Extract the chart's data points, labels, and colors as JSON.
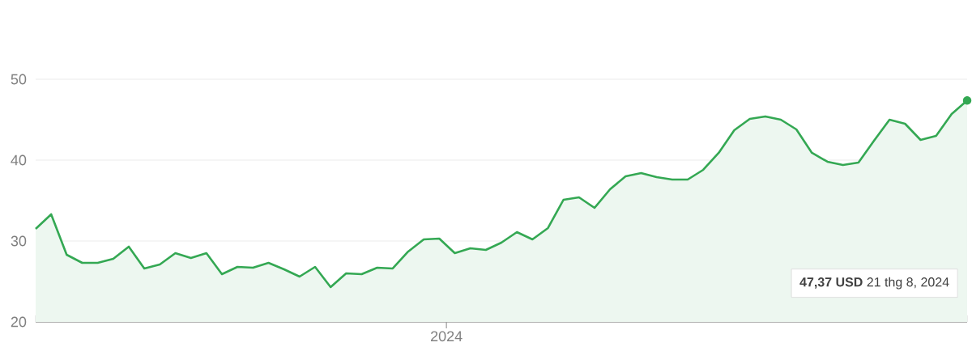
{
  "chart_data": {
    "type": "area",
    "categories": [
      null,
      null,
      null,
      null,
      null,
      null,
      null,
      null,
      null,
      null,
      null,
      null,
      null,
      null,
      null,
      null,
      null,
      null,
      null,
      null,
      null,
      null,
      null,
      null,
      null,
      null,
      null,
      null,
      null,
      null,
      null,
      null,
      null,
      null,
      null,
      null,
      null,
      null,
      null,
      null,
      null,
      null,
      null,
      null,
      null,
      null,
      null,
      null,
      null,
      null,
      null,
      null,
      null,
      null,
      null,
      null,
      null,
      null,
      null,
      null,
      null
    ],
    "values": [
      31.5,
      33.3,
      28.3,
      27.3,
      27.3,
      27.8,
      29.3,
      26.6,
      27.1,
      28.5,
      27.9,
      28.5,
      25.9,
      26.8,
      26.7,
      27.3,
      26.5,
      25.6,
      26.8,
      24.3,
      26.0,
      25.9,
      26.7,
      26.6,
      28.7,
      30.2,
      30.3,
      28.5,
      29.1,
      28.9,
      29.8,
      31.1,
      30.2,
      31.6,
      35.1,
      35.4,
      34.1,
      36.4,
      38.0,
      38.4,
      37.9,
      37.6,
      37.6,
      38.8,
      40.9,
      43.7,
      45.1,
      45.4,
      45.0,
      43.8,
      40.9,
      39.8,
      39.4,
      39.7,
      42.4,
      45.0,
      44.5,
      42.5,
      43.0,
      45.7,
      47.37
    ],
    "color": "#34a853",
    "ylim": [
      20,
      50
    ],
    "yticks": [
      {
        "value": 20,
        "label": "20"
      },
      {
        "value": 30,
        "label": "30"
      },
      {
        "value": 40,
        "label": "40"
      },
      {
        "value": 50,
        "label": "50"
      }
    ],
    "grid": "y",
    "annotations": [
      "2024",
      "**47,37 USD** 21 thg 8, 2024"
    ]
  }
}
